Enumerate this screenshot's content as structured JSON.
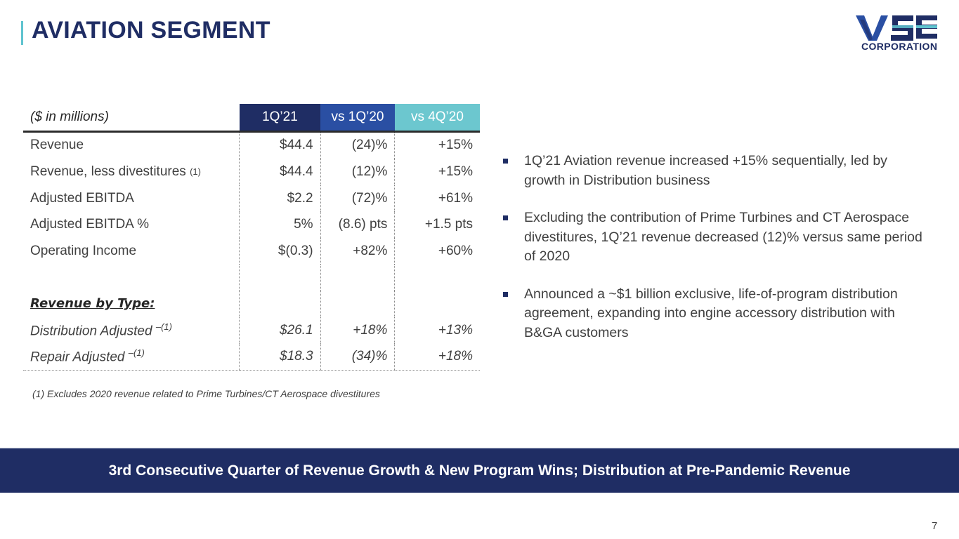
{
  "header": {
    "title": "AVIATION SEGMENT"
  },
  "logo": {
    "mark": "VSE",
    "sub": "CORPORATION"
  },
  "colors": {
    "navy": "#1f2d64",
    "blue": "#2a4fa3",
    "teal": "#6cc7cf",
    "accent_bar": "#5fc3cf"
  },
  "table": {
    "headers": [
      "($ in millions)",
      "1Q’21",
      "vs 1Q’20",
      "vs 4Q’20"
    ],
    "rows": [
      {
        "label": "Revenue",
        "note": "",
        "v1": "$44.4",
        "v2": "(24)%",
        "v3": "+15%"
      },
      {
        "label": "Revenue, less divestitures",
        "note": "(1)",
        "v1": "$44.4",
        "v2": "(12)%",
        "v3": "+15%"
      },
      {
        "label": "Adjusted EBITDA",
        "note": "",
        "v1": "$2.2",
        "v2": "(72)%",
        "v3": "+61%"
      },
      {
        "label": "Adjusted EBITDA %",
        "note": "",
        "v1": "5%",
        "v2": "(8.6) pts",
        "v3": "+1.5 pts"
      },
      {
        "label": "Operating Income",
        "note": "",
        "v1": "$(0.3)",
        "v2": "+82%",
        "v3": "+60%"
      }
    ],
    "subheading": "Revenue by Type:",
    "type_rows": [
      {
        "label": "Distribution Adjusted",
        "note": "–(1)",
        "v1": "$26.1",
        "v2": "+18%",
        "v3": "+13%"
      },
      {
        "label": "Repair Adjusted",
        "note": "–(1)",
        "v1": "$18.3",
        "v2": "(34)%",
        "v3": "+18%"
      }
    ]
  },
  "footnote": "(1) Excludes 2020 revenue related to Prime Turbines/CT Aerospace divestitures",
  "bullets": [
    "1Q’21 Aviation revenue increased +15% sequentially, led by growth in Distribution business",
    "Excluding the contribution of Prime Turbines and CT Aerospace divestitures, 1Q’21 revenue decreased (12)% versus same period of 2020",
    "Announced a ~$1 billion exclusive, life-of-program distribution agreement, expanding into engine accessory distribution with B&GA customers"
  ],
  "banner": "3rd Consecutive Quarter of Revenue Growth & New Program Wins; Distribution at Pre-Pandemic Revenue",
  "page_number": "7"
}
